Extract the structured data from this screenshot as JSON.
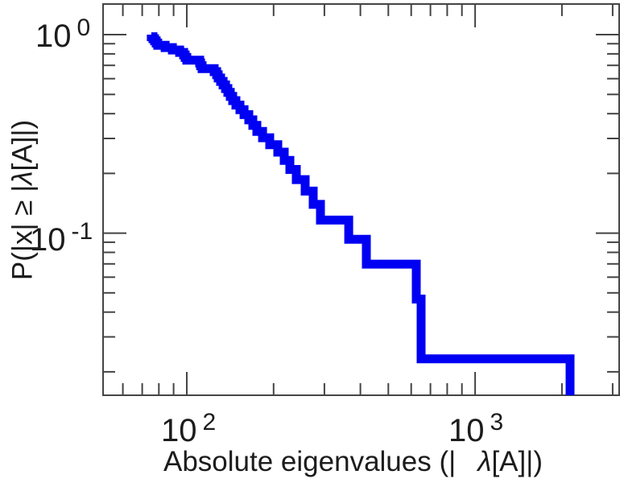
{
  "figure": {
    "background": "#ffffff",
    "axis_color": "#444444",
    "text_color": "#1c1c1c"
  },
  "chart_data": {
    "type": "line",
    "subtype": "empirical_ccdf_step",
    "title": "",
    "x_scale": "log",
    "y_scale": "log",
    "xlabel_pre": "Absolute eigenvalues (|",
    "xlabel_lambda": "λ",
    "xlabel_post": "[A]|)",
    "ylabel_pre": "P(|x| ≥ |",
    "ylabel_lambda": "λ",
    "ylabel_post": "[A]|)",
    "xlim": [
      50.9,
      3180
    ],
    "ylim": [
      0.0151,
      1.44
    ],
    "n_samples": 43,
    "eigenvalues": [
      75.3,
      76.3,
      77.3,
      78.3,
      79.3,
      84.1,
      89.1,
      94.4,
      97.5,
      98.7,
      100.0,
      110.8,
      111.6,
      113.0,
      124.4,
      126.9,
      128.5,
      131.0,
      133.6,
      136.2,
      138.8,
      141.5,
      144.3,
      148.0,
      152.9,
      157.9,
      164.1,
      169.4,
      175.0,
      183.1,
      193.9,
      206.8,
      217.7,
      227.7,
      239.8,
      257.4,
      274.4,
      290.8,
      364.3,
      419.5,
      625.1,
      649.6,
      2134
    ],
    "line_color": "#0000f2",
    "line_width": 11,
    "legend": "none",
    "grid": "off",
    "x_ticks_major": [
      {
        "value": 100,
        "base": "10",
        "exp": "2"
      },
      {
        "value": 1000,
        "base": "10",
        "exp": "3"
      }
    ],
    "x_ticks_minor": [
      60,
      70,
      80,
      90,
      200,
      300,
      400,
      500,
      600,
      700,
      800,
      900,
      2000,
      3000
    ],
    "y_ticks_major": [
      {
        "value": 1,
        "base": "10",
        "exp": "0"
      },
      {
        "value": 0.1,
        "base": "10",
        "exp": "-1"
      }
    ],
    "y_ticks_minor": [
      0.9,
      0.8,
      0.7,
      0.6,
      0.5,
      0.4,
      0.3,
      0.2,
      0.09,
      0.08,
      0.07,
      0.06,
      0.05,
      0.04,
      0.03,
      0.02
    ]
  }
}
